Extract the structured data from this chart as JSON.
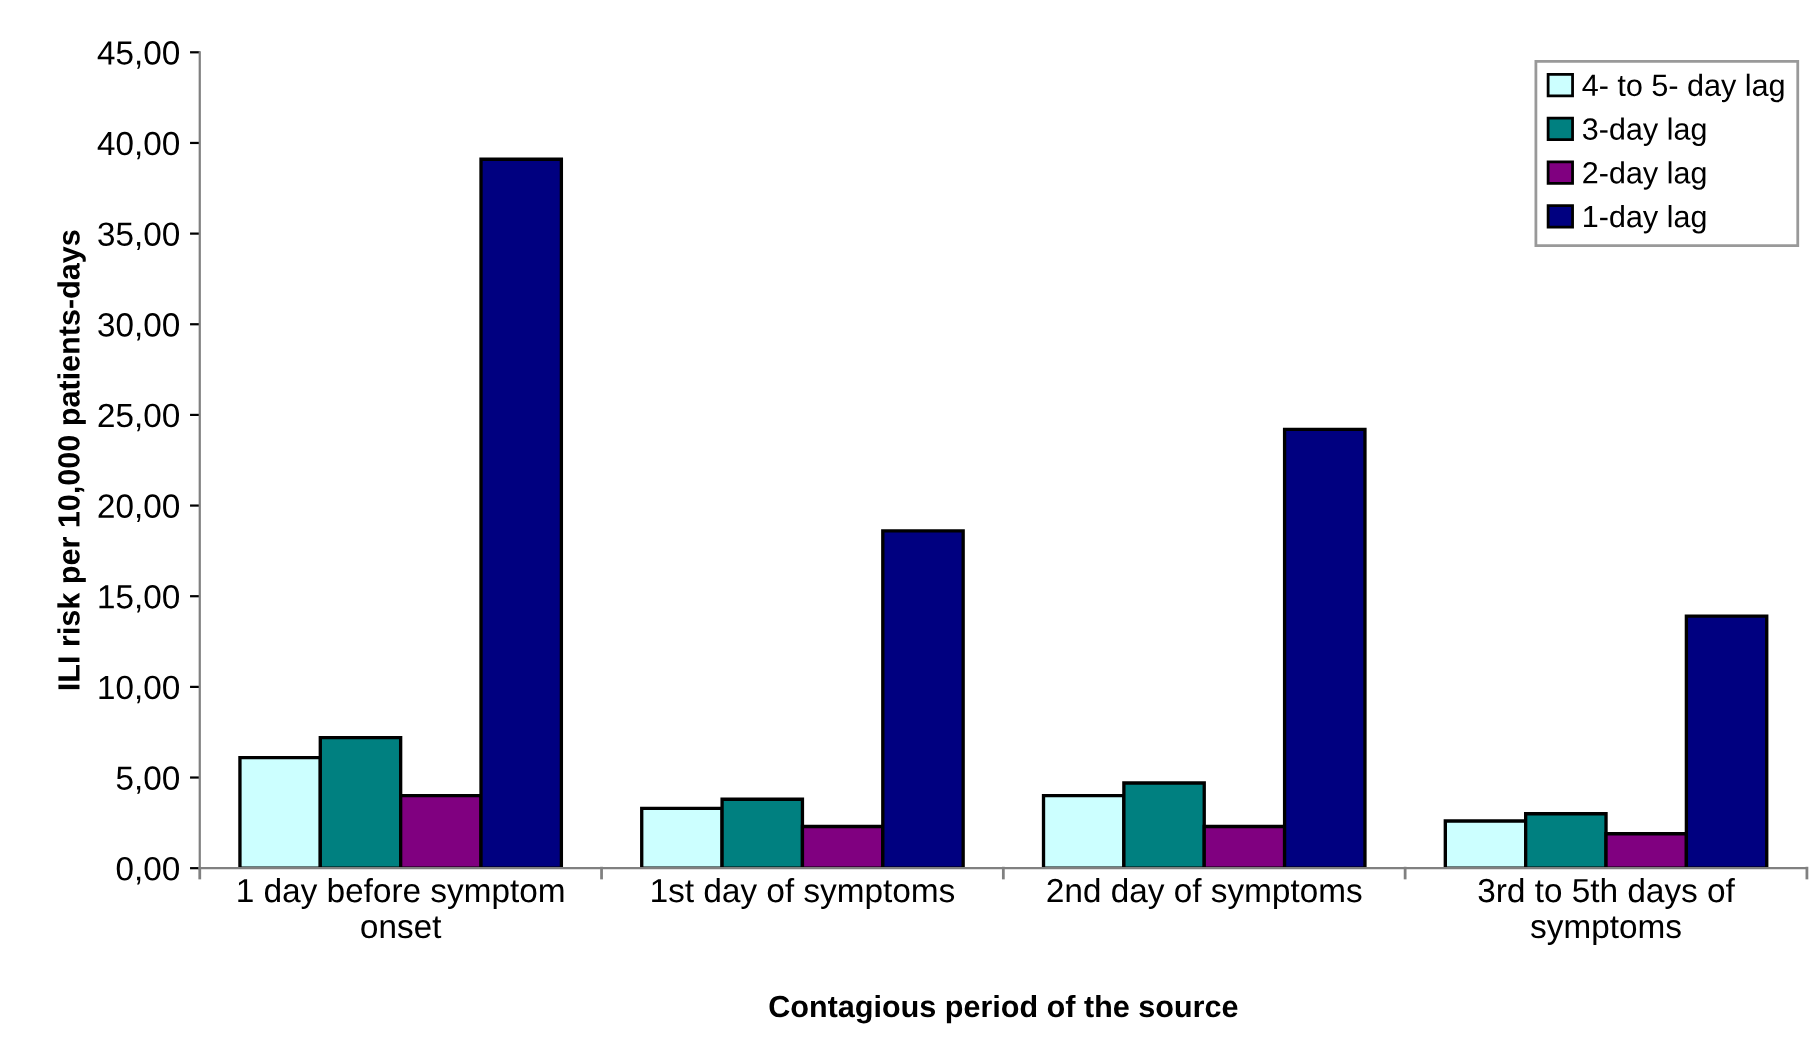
{
  "chart_data": {
    "type": "bar",
    "xlabel": "Contagious period of the source",
    "ylabel": "ILI risk per 10,000 patients-days",
    "categories": [
      "1 day before symptom\nonset",
      "1st day of symptoms",
      "2nd day of symptoms",
      "3rd to 5th days of\nsymptoms"
    ],
    "series": [
      {
        "name": "4- to 5- day lag",
        "color": "#ccffff",
        "values": [
          6.1,
          3.3,
          4.0,
          2.6
        ]
      },
      {
        "name": "3-day lag",
        "color": "#008080",
        "values": [
          7.2,
          3.8,
          4.7,
          3.0
        ]
      },
      {
        "name": "2-day lag",
        "color": "#800080",
        "values": [
          4.0,
          2.3,
          2.3,
          1.9
        ]
      },
      {
        "name": "1-day lag",
        "color": "#000080",
        "values": [
          39.1,
          18.6,
          24.2,
          13.9
        ]
      }
    ],
    "ylim": [
      0,
      45
    ],
    "yticks": [
      {
        "value": 0,
        "label": "0,00"
      },
      {
        "value": 5,
        "label": "5,00"
      },
      {
        "value": 10,
        "label": "10,00"
      },
      {
        "value": 15,
        "label": "15,00"
      },
      {
        "value": 20,
        "label": "20,00"
      },
      {
        "value": 25,
        "label": "25,00"
      },
      {
        "value": 30,
        "label": "30,00"
      },
      {
        "value": 35,
        "label": "35,00"
      },
      {
        "value": 40,
        "label": "40,00"
      },
      {
        "value": 45,
        "label": "45,00"
      }
    ],
    "grid": false,
    "legend": "top right"
  }
}
